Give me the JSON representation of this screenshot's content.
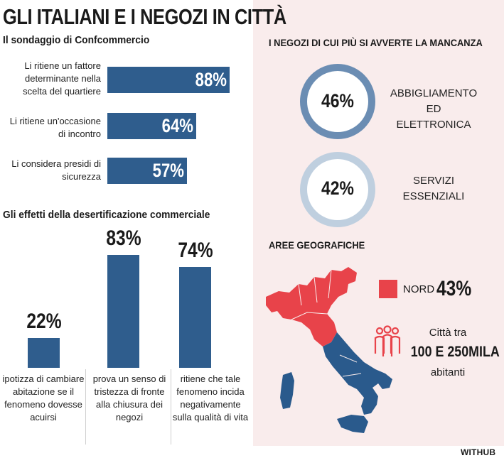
{
  "title": "GLI ITALIANI E I NEGOZI IN CITTÀ",
  "survey": {
    "heading": "Il sondaggio di Confcommercio",
    "items": [
      {
        "label": "Li ritiene un fattore determinante nella scelta del quartiere",
        "value": 88,
        "display": "88%"
      },
      {
        "label": "Li  ritiene un'occasione di incontro",
        "value": 64,
        "display": "64%"
      },
      {
        "label": "Li considera presidi di sicurezza",
        "value": 57,
        "display": "57%"
      }
    ]
  },
  "effects": {
    "heading": "Gli effetti della desertificazione commerciale",
    "items": [
      {
        "label": "ipotizza di cambiare abitazione se il fenomeno dovesse acuirsi",
        "value": 22,
        "display": "22%"
      },
      {
        "label": "prova un senso di tristezza di fronte alla chiusura dei negozi",
        "value": 83,
        "display": "83%"
      },
      {
        "label": "ritiene che tale fenomeno incida negativamente sulla qualità di vita",
        "value": 74,
        "display": "74%"
      }
    ]
  },
  "missing": {
    "heading": "I NEGOZI DI CUI PIÙ SI AVVERTE LA MANCANZA",
    "items": [
      {
        "value": 46,
        "display": "46%",
        "label_line1": "ABBIGLIAMENTO",
        "label_line2": "ED ELETTRONICA",
        "color": "#6b8db3"
      },
      {
        "value": 42,
        "display": "42%",
        "label_line1": "SERVIZI",
        "label_line2": "ESSENZIALI",
        "color": "#bfcfdf"
      }
    ]
  },
  "geo": {
    "heading": "AREE GEOGRAFICHE",
    "north_label": "NORD",
    "north_value": "43%",
    "north_color": "#e8434a",
    "rest_color": "#2a5a8c",
    "city_line1": "Città tra",
    "city_line2": "100 E 250MILA",
    "city_line3": "abitanti",
    "people_icon": "people-icon"
  },
  "chart_data": [
    {
      "type": "bar",
      "orientation": "horizontal",
      "title": "Il sondaggio di Confcommercio",
      "categories": [
        "Li ritiene un fattore determinante nella scelta del quartiere",
        "Li  ritiene un'occasione di incontro",
        "Li considera presidi di sicurezza"
      ],
      "values": [
        88,
        64,
        57
      ],
      "unit": "%"
    },
    {
      "type": "bar",
      "orientation": "vertical",
      "title": "Gli effetti della desertificazione commerciale",
      "categories": [
        "ipotizza di cambiare abitazione se il fenomeno dovesse acuirsi",
        "prova un senso di tristezza di fronte alla chiusura dei negozi",
        "ritiene che tale fenomeno incida negativamente sulla qualità di vita"
      ],
      "values": [
        22,
        83,
        74
      ],
      "unit": "%"
    },
    {
      "type": "pie",
      "title": "I NEGOZI DI CUI PIÙ SI AVVERTE LA MANCANZA",
      "categories": [
        "ABBIGLIAMENTO ED ELETTRONICA",
        "SERVIZI ESSENZIALI"
      ],
      "values": [
        46,
        42
      ],
      "unit": "%"
    }
  ],
  "footer": {
    "brand": "WITHUB"
  }
}
